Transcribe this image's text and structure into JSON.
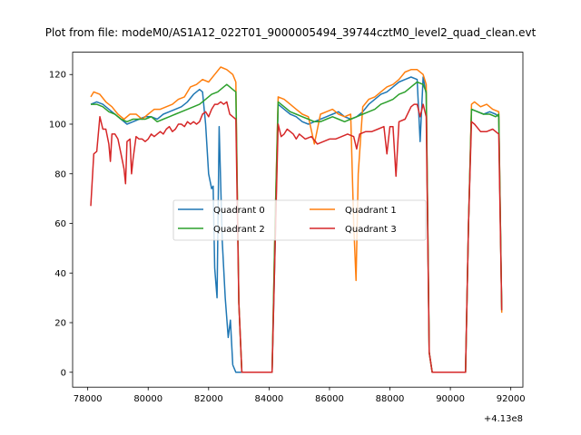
{
  "chart_data": {
    "type": "line",
    "title": "Plot from file: modeM0/AS1A12_022T01_9000005494_39744cztM0_level2_quad_clean.evt",
    "xlabel": "",
    "ylabel": "",
    "x_offset_label": "+4.13e8",
    "xlim": [
      77500,
      92400
    ],
    "ylim": [
      -6,
      129
    ],
    "xticks": [
      78000,
      80000,
      82000,
      84000,
      86000,
      88000,
      90000,
      92000
    ],
    "yticks": [
      0,
      20,
      40,
      60,
      80,
      100,
      120
    ],
    "grid": false,
    "legend": {
      "placement": "center",
      "columns": 2
    },
    "series": [
      {
        "name": "Quadrant 0",
        "color": "#1f77b4",
        "points": [
          [
            78100,
            108
          ],
          [
            78300,
            109
          ],
          [
            78500,
            108
          ],
          [
            78700,
            106
          ],
          [
            78900,
            104
          ],
          [
            79100,
            102
          ],
          [
            79300,
            100
          ],
          [
            79500,
            101
          ],
          [
            79700,
            102
          ],
          [
            79900,
            103
          ],
          [
            80100,
            103
          ],
          [
            80300,
            102
          ],
          [
            80500,
            104
          ],
          [
            80700,
            105
          ],
          [
            80900,
            106
          ],
          [
            81100,
            107
          ],
          [
            81300,
            109
          ],
          [
            81500,
            112
          ],
          [
            81700,
            114
          ],
          [
            81800,
            113
          ],
          [
            81900,
            100
          ],
          [
            82000,
            80
          ],
          [
            82100,
            74
          ],
          [
            82150,
            75
          ],
          [
            82200,
            42
          ],
          [
            82280,
            30
          ],
          [
            82350,
            99
          ],
          [
            82450,
            53
          ],
          [
            82550,
            30
          ],
          [
            82650,
            14
          ],
          [
            82720,
            21
          ],
          [
            82800,
            3
          ],
          [
            82900,
            0
          ],
          [
            83100,
            0
          ],
          [
            84100,
            0
          ],
          [
            84200,
            50
          ],
          [
            84300,
            108
          ],
          [
            84500,
            106
          ],
          [
            84700,
            104
          ],
          [
            84900,
            103
          ],
          [
            85100,
            101
          ],
          [
            85300,
            100
          ],
          [
            85500,
            101
          ],
          [
            85700,
            102
          ],
          [
            85900,
            103
          ],
          [
            86100,
            104
          ],
          [
            86300,
            105
          ],
          [
            86500,
            103
          ],
          [
            86700,
            102
          ],
          [
            86900,
            103
          ],
          [
            87100,
            105
          ],
          [
            87300,
            108
          ],
          [
            87500,
            110
          ],
          [
            87700,
            112
          ],
          [
            87900,
            113
          ],
          [
            88100,
            115
          ],
          [
            88300,
            117
          ],
          [
            88500,
            118
          ],
          [
            88700,
            119
          ],
          [
            88900,
            118
          ],
          [
            89000,
            93
          ],
          [
            89100,
            119
          ],
          [
            89200,
            112
          ],
          [
            89300,
            8
          ],
          [
            89400,
            0
          ],
          [
            90500,
            0
          ],
          [
            90600,
            60
          ],
          [
            90700,
            106
          ],
          [
            90900,
            105
          ],
          [
            91100,
            104
          ],
          [
            91300,
            105
          ],
          [
            91500,
            104
          ],
          [
            91600,
            103
          ],
          [
            91700,
            25
          ]
        ]
      },
      {
        "name": "Quadrant 1",
        "color": "#ff7f0e",
        "points": [
          [
            78100,
            111
          ],
          [
            78200,
            113
          ],
          [
            78400,
            112
          ],
          [
            78600,
            109
          ],
          [
            78800,
            107
          ],
          [
            79000,
            104
          ],
          [
            79200,
            102
          ],
          [
            79400,
            104
          ],
          [
            79600,
            104
          ],
          [
            79800,
            102
          ],
          [
            80000,
            104
          ],
          [
            80200,
            106
          ],
          [
            80400,
            106
          ],
          [
            80600,
            107
          ],
          [
            80800,
            108
          ],
          [
            81000,
            110
          ],
          [
            81200,
            111
          ],
          [
            81400,
            115
          ],
          [
            81600,
            116
          ],
          [
            81800,
            118
          ],
          [
            82000,
            117
          ],
          [
            82200,
            120
          ],
          [
            82400,
            123
          ],
          [
            82600,
            122
          ],
          [
            82800,
            120
          ],
          [
            82900,
            117
          ],
          [
            83000,
            28
          ],
          [
            83100,
            0
          ],
          [
            84100,
            0
          ],
          [
            84200,
            60
          ],
          [
            84300,
            111
          ],
          [
            84500,
            110
          ],
          [
            84700,
            108
          ],
          [
            84900,
            106
          ],
          [
            85100,
            104
          ],
          [
            85300,
            103
          ],
          [
            85500,
            92
          ],
          [
            85700,
            104
          ],
          [
            85900,
            105
          ],
          [
            86100,
            106
          ],
          [
            86300,
            104
          ],
          [
            86500,
            103
          ],
          [
            86700,
            104
          ],
          [
            86800,
            60
          ],
          [
            86880,
            37
          ],
          [
            86950,
            80
          ],
          [
            87100,
            107
          ],
          [
            87300,
            110
          ],
          [
            87500,
            111
          ],
          [
            87700,
            113
          ],
          [
            87900,
            115
          ],
          [
            88100,
            116
          ],
          [
            88300,
            118
          ],
          [
            88500,
            121
          ],
          [
            88700,
            122
          ],
          [
            88900,
            122
          ],
          [
            89100,
            120
          ],
          [
            89200,
            116
          ],
          [
            89300,
            8
          ],
          [
            89400,
            0
          ],
          [
            90500,
            0
          ],
          [
            90600,
            60
          ],
          [
            90700,
            108
          ],
          [
            90800,
            109
          ],
          [
            91000,
            107
          ],
          [
            91200,
            108
          ],
          [
            91400,
            106
          ],
          [
            91600,
            105
          ],
          [
            91700,
            24
          ]
        ]
      },
      {
        "name": "Quadrant 2",
        "color": "#2ca02c",
        "points": [
          [
            78100,
            108
          ],
          [
            78300,
            108
          ],
          [
            78500,
            107
          ],
          [
            78700,
            105
          ],
          [
            78900,
            104
          ],
          [
            79100,
            102
          ],
          [
            79300,
            101
          ],
          [
            79500,
            102
          ],
          [
            79700,
            102
          ],
          [
            79900,
            102
          ],
          [
            80100,
            103
          ],
          [
            80300,
            101
          ],
          [
            80500,
            102
          ],
          [
            80700,
            103
          ],
          [
            80900,
            104
          ],
          [
            81100,
            105
          ],
          [
            81300,
            106
          ],
          [
            81500,
            107
          ],
          [
            81700,
            108
          ],
          [
            81900,
            110
          ],
          [
            82100,
            112
          ],
          [
            82300,
            113
          ],
          [
            82500,
            115
          ],
          [
            82600,
            116
          ],
          [
            82800,
            114
          ],
          [
            82900,
            113
          ],
          [
            83000,
            28
          ],
          [
            83100,
            0
          ],
          [
            84100,
            0
          ],
          [
            84200,
            60
          ],
          [
            84300,
            109
          ],
          [
            84500,
            107
          ],
          [
            84700,
            105
          ],
          [
            84900,
            104
          ],
          [
            85100,
            103
          ],
          [
            85300,
            102
          ],
          [
            85500,
            101
          ],
          [
            85700,
            101
          ],
          [
            85900,
            102
          ],
          [
            86100,
            103
          ],
          [
            86300,
            102
          ],
          [
            86500,
            101
          ],
          [
            86700,
            102
          ],
          [
            86900,
            103
          ],
          [
            87100,
            104
          ],
          [
            87300,
            105
          ],
          [
            87500,
            106
          ],
          [
            87700,
            108
          ],
          [
            87900,
            109
          ],
          [
            88100,
            110
          ],
          [
            88300,
            112
          ],
          [
            88500,
            113
          ],
          [
            88700,
            115
          ],
          [
            88900,
            117
          ],
          [
            89100,
            116
          ],
          [
            89200,
            113
          ],
          [
            89300,
            8
          ],
          [
            89400,
            0
          ],
          [
            90500,
            0
          ],
          [
            90600,
            60
          ],
          [
            90700,
            106
          ],
          [
            90900,
            105
          ],
          [
            91100,
            104
          ],
          [
            91300,
            104
          ],
          [
            91500,
            103
          ],
          [
            91600,
            104
          ],
          [
            91700,
            25
          ]
        ]
      },
      {
        "name": "Quadrant 3",
        "color": "#d62728",
        "points": [
          [
            78100,
            67
          ],
          [
            78200,
            88
          ],
          [
            78300,
            89
          ],
          [
            78400,
            103
          ],
          [
            78500,
            98
          ],
          [
            78600,
            98
          ],
          [
            78700,
            92
          ],
          [
            78750,
            85
          ],
          [
            78800,
            96
          ],
          [
            78900,
            96
          ],
          [
            79000,
            94
          ],
          [
            79100,
            88
          ],
          [
            79200,
            82
          ],
          [
            79250,
            76
          ],
          [
            79300,
            93
          ],
          [
            79400,
            94
          ],
          [
            79450,
            80
          ],
          [
            79500,
            86
          ],
          [
            79600,
            95
          ],
          [
            79700,
            94
          ],
          [
            79800,
            94
          ],
          [
            79900,
            93
          ],
          [
            80000,
            94
          ],
          [
            80100,
            96
          ],
          [
            80200,
            95
          ],
          [
            80300,
            96
          ],
          [
            80400,
            97
          ],
          [
            80500,
            96
          ],
          [
            80600,
            98
          ],
          [
            80700,
            99
          ],
          [
            80800,
            97
          ],
          [
            80900,
            98
          ],
          [
            81000,
            100
          ],
          [
            81100,
            100
          ],
          [
            81200,
            99
          ],
          [
            81300,
            101
          ],
          [
            81400,
            100
          ],
          [
            81500,
            101
          ],
          [
            81600,
            100
          ],
          [
            81700,
            101
          ],
          [
            81800,
            104
          ],
          [
            81900,
            105
          ],
          [
            82000,
            103
          ],
          [
            82100,
            106
          ],
          [
            82200,
            108
          ],
          [
            82300,
            108
          ],
          [
            82400,
            109
          ],
          [
            82500,
            108
          ],
          [
            82600,
            109
          ],
          [
            82700,
            104
          ],
          [
            82800,
            103
          ],
          [
            82900,
            102
          ],
          [
            83000,
            28
          ],
          [
            83100,
            0
          ],
          [
            84100,
            0
          ],
          [
            84200,
            50
          ],
          [
            84300,
            100
          ],
          [
            84400,
            95
          ],
          [
            84500,
            96
          ],
          [
            84600,
            98
          ],
          [
            84700,
            97
          ],
          [
            84800,
            96
          ],
          [
            84900,
            94
          ],
          [
            85000,
            96
          ],
          [
            85200,
            94
          ],
          [
            85400,
            95
          ],
          [
            85600,
            92
          ],
          [
            85800,
            93
          ],
          [
            86000,
            94
          ],
          [
            86200,
            94
          ],
          [
            86400,
            95
          ],
          [
            86600,
            96
          ],
          [
            86800,
            95
          ],
          [
            86900,
            90
          ],
          [
            87000,
            96
          ],
          [
            87200,
            97
          ],
          [
            87400,
            97
          ],
          [
            87600,
            98
          ],
          [
            87800,
            99
          ],
          [
            87900,
            88
          ],
          [
            88000,
            99
          ],
          [
            88100,
            99
          ],
          [
            88200,
            79
          ],
          [
            88300,
            101
          ],
          [
            88500,
            102
          ],
          [
            88700,
            107
          ],
          [
            88800,
            108
          ],
          [
            88900,
            108
          ],
          [
            89000,
            103
          ],
          [
            89100,
            108
          ],
          [
            89200,
            103
          ],
          [
            89300,
            8
          ],
          [
            89400,
            0
          ],
          [
            90500,
            0
          ],
          [
            90600,
            60
          ],
          [
            90700,
            101
          ],
          [
            90800,
            100
          ],
          [
            91000,
            97
          ],
          [
            91200,
            97
          ],
          [
            91400,
            98
          ],
          [
            91600,
            96
          ],
          [
            91700,
            25
          ]
        ]
      }
    ]
  }
}
